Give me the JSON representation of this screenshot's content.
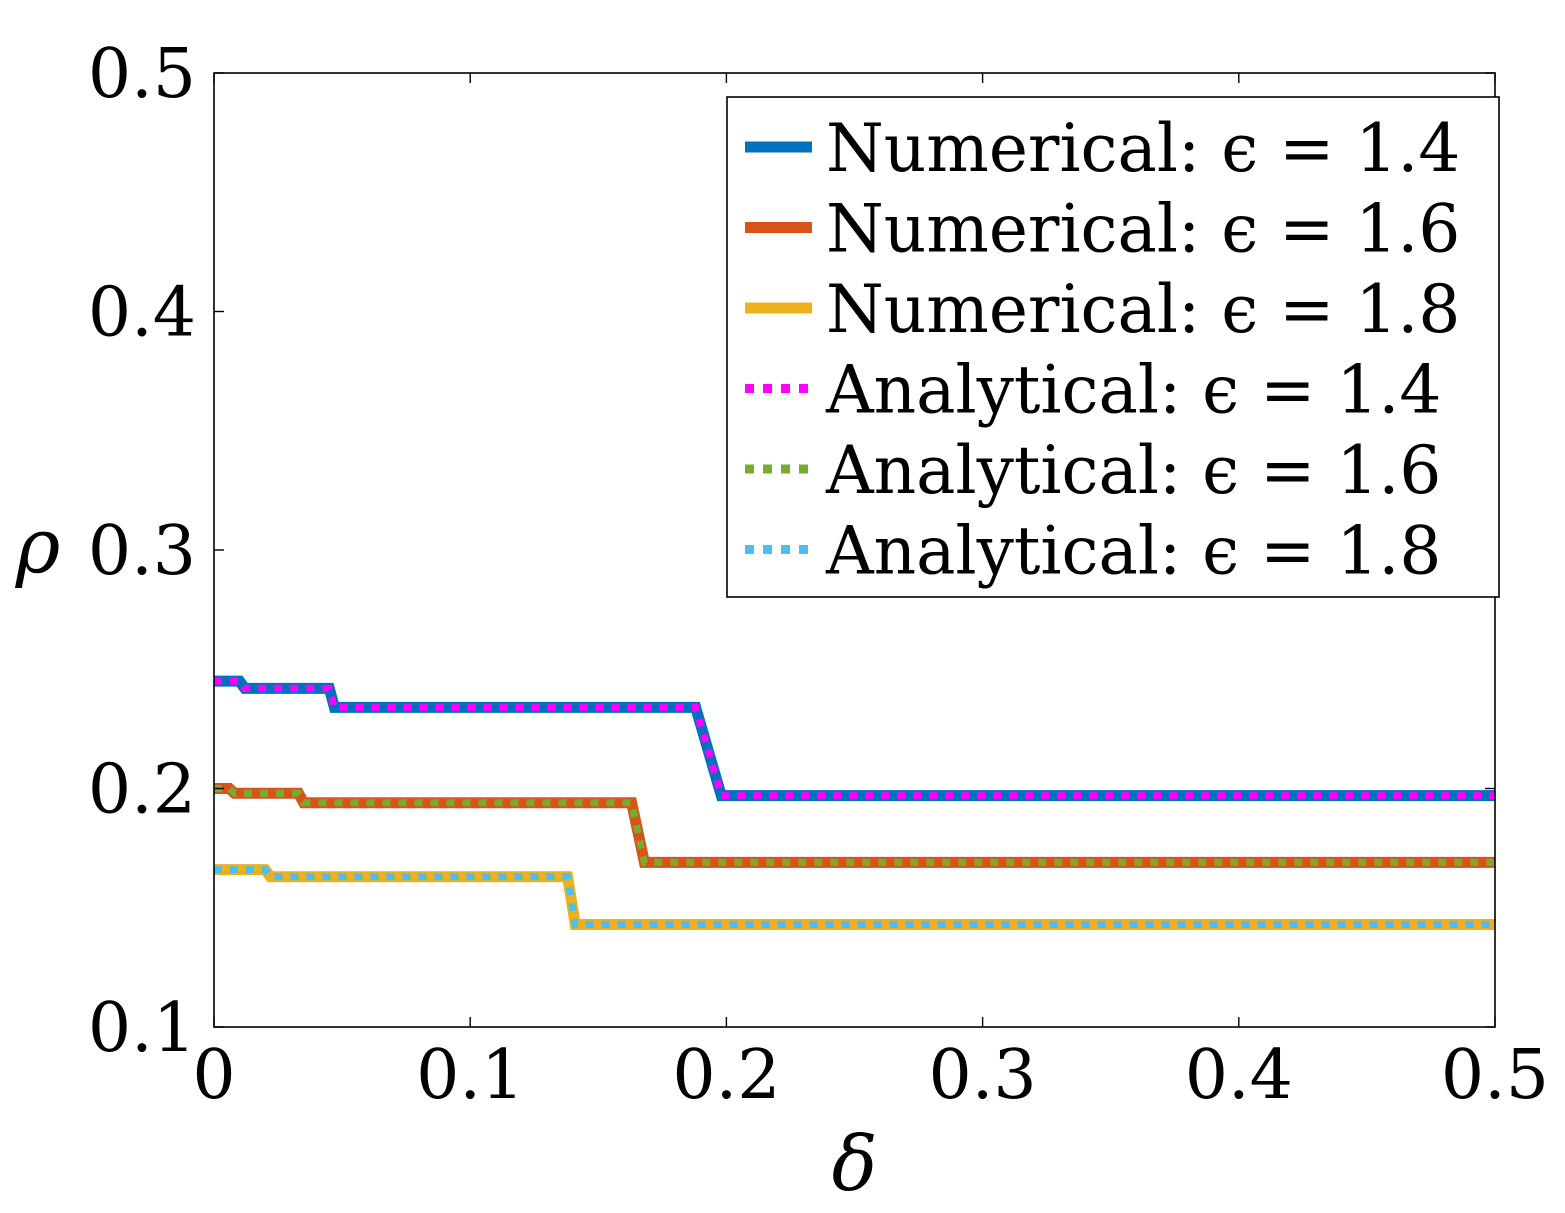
{
  "chart_data": {
    "type": "line",
    "title": "",
    "xlabel": "δ",
    "ylabel": "ρ",
    "xlim": [
      0,
      0.5
    ],
    "ylim": [
      0.1,
      0.5
    ],
    "xticks": [
      0,
      0.1,
      0.2,
      0.3,
      0.4,
      0.5
    ],
    "yticks": [
      0.1,
      0.2,
      0.3,
      0.4,
      0.5
    ],
    "xtick_labels": [
      "0",
      "0.1",
      "0.2",
      "0.3",
      "0.4",
      "0.5"
    ],
    "ytick_labels": [
      "0.1",
      "0.2",
      "0.3",
      "0.4",
      "0.5"
    ],
    "grid": false,
    "legend_position": "top-right",
    "series": [
      {
        "name": "Numerical: ϵ = 1.4",
        "style": "solid",
        "color": "#0072BD",
        "x": [
          0,
          0.01,
          0.012,
          0.045,
          0.047,
          0.188,
          0.198,
          0.5
        ],
        "y": [
          0.245,
          0.245,
          0.242,
          0.242,
          0.234,
          0.234,
          0.197,
          0.197
        ]
      },
      {
        "name": "Numerical: ϵ = 1.6",
        "style": "solid",
        "color": "#D95319",
        "x": [
          0,
          0.006,
          0.008,
          0.033,
          0.035,
          0.163,
          0.168,
          0.5
        ],
        "y": [
          0.2,
          0.2,
          0.198,
          0.198,
          0.194,
          0.194,
          0.169,
          0.169
        ]
      },
      {
        "name": "Numerical: ϵ = 1.8",
        "style": "solid",
        "color": "#EDB120",
        "x": [
          0,
          0.02,
          0.022,
          0.138,
          0.141,
          0.5
        ],
        "y": [
          0.166,
          0.166,
          0.163,
          0.163,
          0.143,
          0.143
        ]
      },
      {
        "name": "Analytical: ϵ = 1.4",
        "style": "dotted",
        "color": "#FF00FF",
        "x": [
          0,
          0.01,
          0.012,
          0.045,
          0.047,
          0.188,
          0.198,
          0.5
        ],
        "y": [
          0.245,
          0.245,
          0.242,
          0.242,
          0.234,
          0.234,
          0.197,
          0.197
        ]
      },
      {
        "name": "Analytical: ϵ = 1.6",
        "style": "dotted",
        "color": "#77AC30",
        "x": [
          0,
          0.006,
          0.008,
          0.033,
          0.035,
          0.163,
          0.168,
          0.5
        ],
        "y": [
          0.2,
          0.2,
          0.198,
          0.198,
          0.194,
          0.194,
          0.169,
          0.169
        ]
      },
      {
        "name": "Analytical: ϵ = 1.8",
        "style": "dotted",
        "color": "#4DBEEE",
        "x": [
          0,
          0.02,
          0.022,
          0.138,
          0.141,
          0.5
        ],
        "y": [
          0.166,
          0.166,
          0.163,
          0.163,
          0.143,
          0.143
        ]
      }
    ]
  }
}
